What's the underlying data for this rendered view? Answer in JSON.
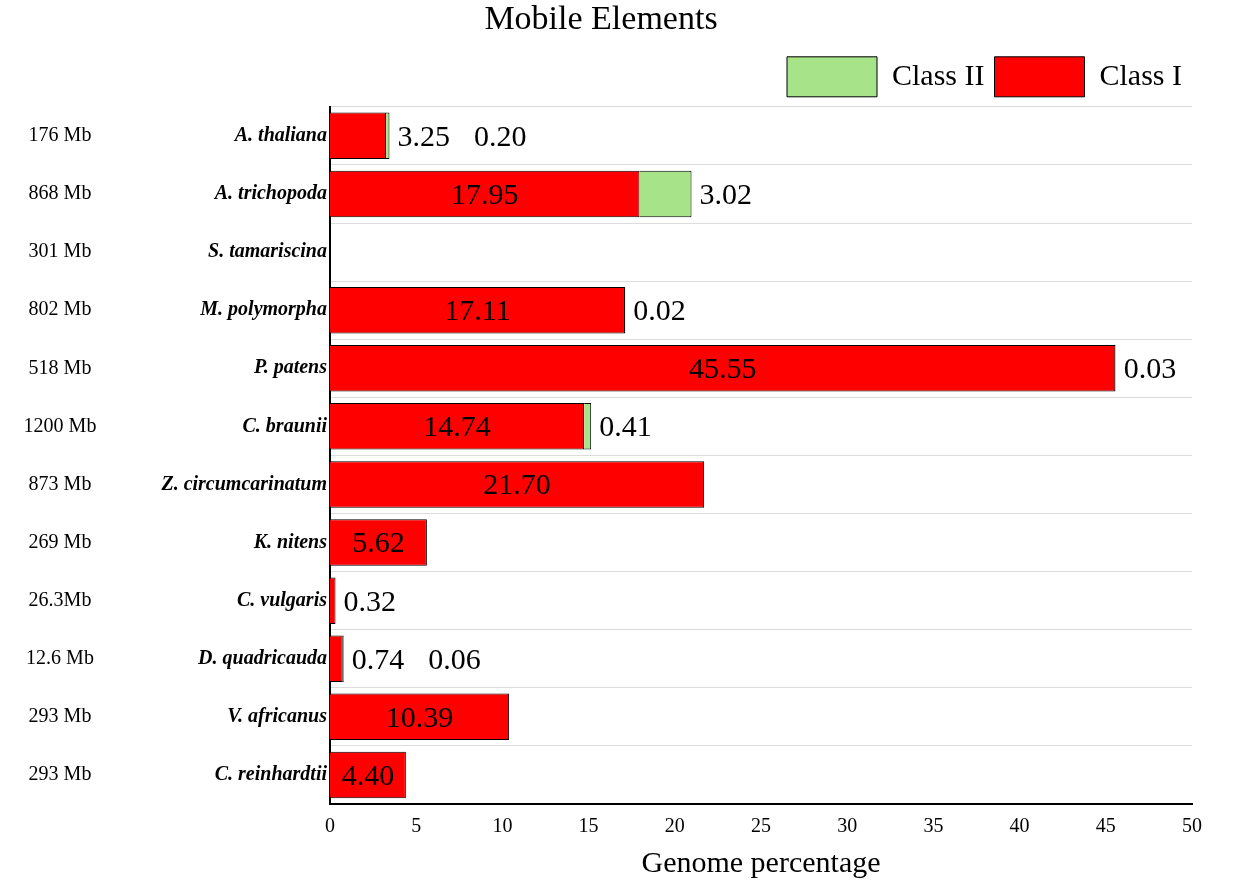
{
  "chart_data": {
    "type": "bar",
    "orientation": "horizontal",
    "stacked": true,
    "title": "Mobile Elements",
    "xlabel": "Genome percentage",
    "categories": [
      "A. thaliana",
      "A. trichopoda",
      "S. tamariscina",
      "M. polymorpha",
      "P. patens",
      "C. braunii",
      "Z. circumcarinatum",
      "K. nitens",
      "C. vulgaris",
      "D. quadricauda",
      "V. africanus",
      "C. reinhardtii"
    ],
    "series": [
      {
        "name": "Class I",
        "color": "#ff0000",
        "values": [
          3.25,
          17.95,
          null,
          17.11,
          45.55,
          14.74,
          21.7,
          5.62,
          0.32,
          0.74,
          10.39,
          4.4
        ],
        "value_labels": [
          "3.25",
          "17.95",
          null,
          "17.11",
          "45.55",
          "14.74",
          "21.70",
          "5.62",
          "0.32",
          "0.74",
          "10.39",
          "4.40"
        ]
      },
      {
        "name": "Class II",
        "color": "#a6e389",
        "values": [
          0.2,
          3.02,
          null,
          0.02,
          0.03,
          0.41,
          null,
          null,
          null,
          0.06,
          null,
          null
        ],
        "value_labels": [
          "0.20",
          "3.02",
          null,
          "0.02",
          "0.03",
          "0.41",
          null,
          null,
          null,
          "0.06",
          null,
          null
        ]
      }
    ],
    "annotations": [
      "176 Mb",
      "868 Mb",
      "301 Mb",
      "802 Mb",
      "518 Mb",
      "1200 Mb",
      "873 Mb",
      "269 Mb",
      "26.3Mb",
      "12.6 Mb",
      "293 Mb",
      "293 Mb"
    ],
    "xlim": [
      0,
      50
    ],
    "xticks": [
      0,
      5,
      10,
      15,
      20,
      25,
      30,
      35,
      40,
      45,
      50
    ],
    "grid": "y",
    "legend": "top right"
  }
}
